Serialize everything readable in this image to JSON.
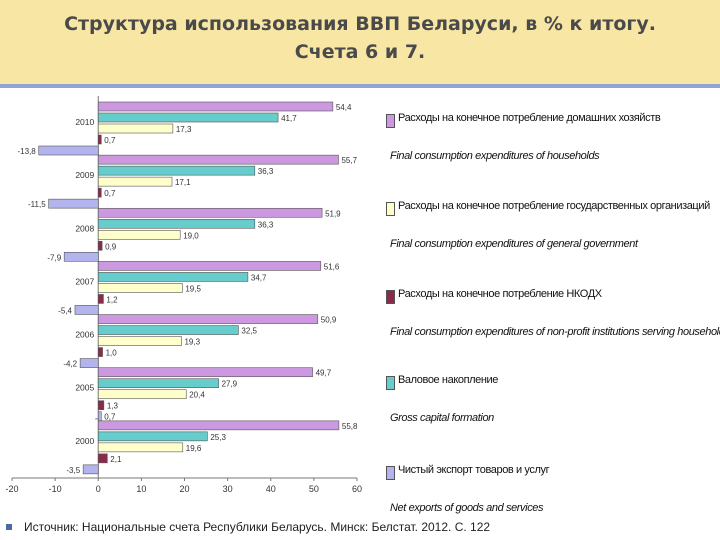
{
  "header": {
    "title_line1": "Структура использования ВВП Беларуси, в % к итогу.",
    "title_line2": "Счета 6 и 7."
  },
  "colors": {
    "household": "#cc99e0",
    "government": "#ffffcc",
    "npish": "#8b2a4a",
    "gross_capital": "#66cccc",
    "net_exports": "#b3b3ee",
    "title_bg": "#f7e6a4",
    "rule": "#8fa5d6"
  },
  "chart_data": {
    "type": "bar",
    "orientation": "horizontal",
    "categories": [
      "2010",
      "2009",
      "2008",
      "2007",
      "2006",
      "2005",
      "2000"
    ],
    "series": [
      {
        "key": "household",
        "name": "Расходы на конечное потребление домашних хозяйств",
        "name_en": "Final consumption expenditures of households",
        "values": [
          54.4,
          55.7,
          51.9,
          51.6,
          50.9,
          49.7,
          55.8
        ],
        "labels": [
          "54,4",
          "55,7",
          "51,9",
          "51,6",
          "50,9",
          "49,7",
          "55,8"
        ]
      },
      {
        "key": "gross_capital",
        "name": "Валовое накопление",
        "name_en": "Gross capital formation",
        "values": [
          41.7,
          36.3,
          36.3,
          34.7,
          32.5,
          27.9,
          25.3
        ],
        "labels": [
          "41,7",
          "36,3",
          "36,3",
          "34,7",
          "32,5",
          "27,9",
          "25,3"
        ]
      },
      {
        "key": "government",
        "name": "Расходы на конечное потребление государственных организаций",
        "name_en": "Final consumption expenditures of general government",
        "values": [
          17.3,
          17.1,
          19.0,
          19.5,
          19.3,
          20.4,
          19.6
        ],
        "labels": [
          "17,3",
          "17,1",
          "19,0",
          "19,5",
          "19,3",
          "20,4",
          "19,6"
        ]
      },
      {
        "key": "npish",
        "name": "Расходы на конечное потребление НКОДХ",
        "name_en": "Final consumption expenditures of non-profit institutions serving households",
        "values": [
          0.7,
          0.7,
          0.9,
          1.2,
          1.0,
          1.3,
          2.1
        ],
        "labels": [
          "0,7",
          "0,7",
          "0,9",
          "1,2",
          "1,0",
          "1,3",
          "2,1"
        ]
      },
      {
        "key": "net_exports",
        "name": "Чистый экспорт товаров и услуг",
        "name_en": "Net exports of goods and services",
        "values": [
          -13.8,
          -11.5,
          -7.9,
          -5.4,
          -4.2,
          0.7,
          -3.5
        ],
        "labels": [
          "-13,8",
          "-11,5",
          "-7,9",
          "-5,4",
          "-4,2",
          "0,7",
          "-3,5"
        ]
      }
    ],
    "xlim": [
      -20,
      60
    ],
    "xticks": [
      "-20",
      "-10",
      "0",
      "10",
      "20",
      "30",
      "40",
      "50",
      "60"
    ],
    "legend_order": [
      "household",
      "government",
      "npish",
      "gross_capital",
      "net_exports"
    ],
    "legend_position": "right"
  },
  "source": "Источник: Национальные счета Республики Беларусь. Минск: Белстат. 2012. С. 122"
}
